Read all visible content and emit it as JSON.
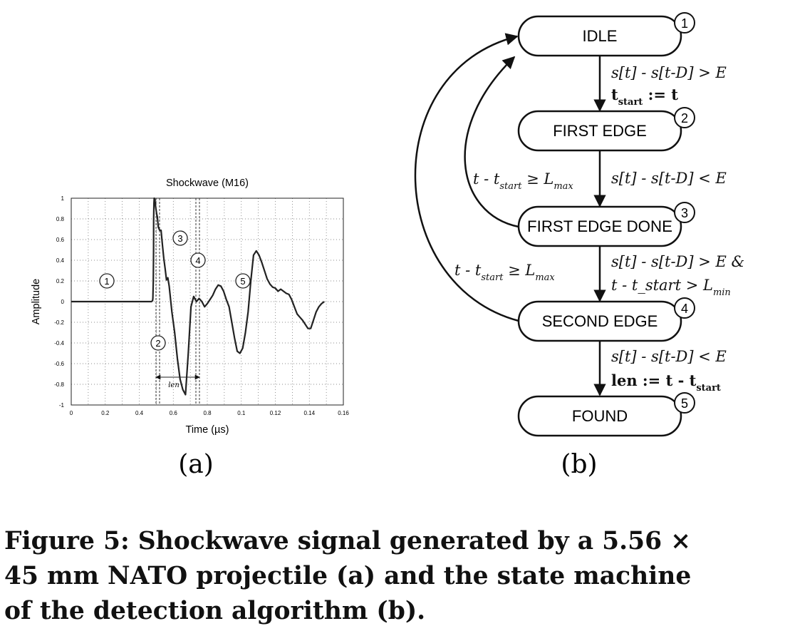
{
  "chart_data": {
    "type": "line",
    "title": "Shockwave (M16)",
    "xlabel": "Time (µs)",
    "ylabel": "Amplitude",
    "xlim": [
      0,
      2000
    ],
    "ylim": [
      -1,
      1
    ],
    "x_ticks": [
      "0",
      "0.2",
      "0.4",
      "0.6",
      "0.8",
      "0.1",
      "0.12",
      "0.14",
      "0.16"
    ],
    "y_ticks": [
      "1",
      "0.8",
      "0.6",
      "0.4",
      "0.2",
      "0",
      "-0.2",
      "-0.4",
      "-0.6",
      "-0.8",
      "-1"
    ],
    "grid": true,
    "region_markers": [
      "1",
      "2",
      "3",
      "4",
      "5"
    ],
    "len_label": "len",
    "series": [
      {
        "color": "#222222",
        "x": [
          0,
          100,
          200,
          300,
          400,
          500,
          560,
          590,
          598,
          600,
          603,
          605,
          606,
          608,
          610,
          615,
          620,
          628,
          633,
          640,
          650,
          660,
          670,
          680,
          690,
          700,
          710,
          720,
          740,
          760,
          780,
          800,
          820,
          840,
          860,
          880,
          900,
          920,
          940,
          960,
          980,
          1000,
          1020,
          1040,
          1060,
          1080,
          1100,
          1120,
          1140,
          1160,
          1180,
          1200,
          1220,
          1240,
          1260,
          1280,
          1300,
          1320,
          1340,
          1360,
          1380,
          1400,
          1420,
          1440,
          1460,
          1480,
          1500,
          1520,
          1540,
          1560,
          1580,
          1600,
          1620,
          1640,
          1660,
          1680,
          1700,
          1720,
          1740,
          1760,
          1780,
          1800,
          1820,
          1840,
          1860
        ],
        "y": [
          0,
          0,
          0,
          0,
          0,
          0,
          0,
          0,
          0.01,
          0.03,
          0.2,
          0.5,
          0.8,
          0.95,
          1.0,
          0.98,
          0.92,
          0.85,
          0.82,
          0.72,
          0.69,
          0.69,
          0.55,
          0.42,
          0.32,
          0.21,
          0.23,
          0.15,
          -0.1,
          -0.3,
          -0.55,
          -0.75,
          -0.85,
          -0.9,
          -0.5,
          -0.05,
          0.05,
          0,
          0.03,
          0,
          -0.05,
          -0.02,
          0.02,
          0.06,
          0.12,
          0.16,
          0.15,
          0.1,
          0.02,
          -0.05,
          -0.2,
          -0.35,
          -0.48,
          -0.5,
          -0.45,
          -0.3,
          -0.1,
          0.2,
          0.45,
          0.49,
          0.45,
          0.38,
          0.3,
          0.22,
          0.17,
          0.14,
          0.13,
          0.1,
          0.12,
          0.1,
          0.08,
          0.07,
          0.02,
          -0.05,
          -0.12,
          -0.15,
          -0.18,
          -0.22,
          -0.26,
          -0.26,
          -0.18,
          -0.1,
          -0.05,
          -0.02,
          0
        ]
      }
    ]
  },
  "panel_a_label": "(a)",
  "panel_b_label": "(b)",
  "state_machine": {
    "states": [
      {
        "num": "1",
        "label": "IDLE"
      },
      {
        "num": "2",
        "label": "FIRST EDGE"
      },
      {
        "num": "3",
        "label": "FIRST EDGE DONE"
      },
      {
        "num": "4",
        "label": "SECOND EDGE"
      },
      {
        "num": "5",
        "label": "FOUND"
      }
    ],
    "t1_cond": "s[t] - s[t-D] > E",
    "t1_act_main": "t",
    "t1_act_sub": "start",
    "t1_act_tail": " := t",
    "t2_cond": "s[t] - s[t-D] < E",
    "t3_cond1": "s[t] - s[t-D] > E  &",
    "t3_cond2_main": "t - t_start > L",
    "t3_cond2_sub": "min",
    "t4_cond": "s[t] - s[t-D] < E",
    "t4_act_main": "len := t - t",
    "t4_act_sub": "start",
    "back_main": "t - t",
    "back_sub": "start",
    "back_mid": " ≥ L",
    "back_sub2": "max"
  },
  "caption_lines": [
    "Figure 5: Shockwave signal generated by a 5.56 ×",
    "45 mm NATO projectile (a) and the state machine",
    "of the detection algorithm (b)."
  ]
}
